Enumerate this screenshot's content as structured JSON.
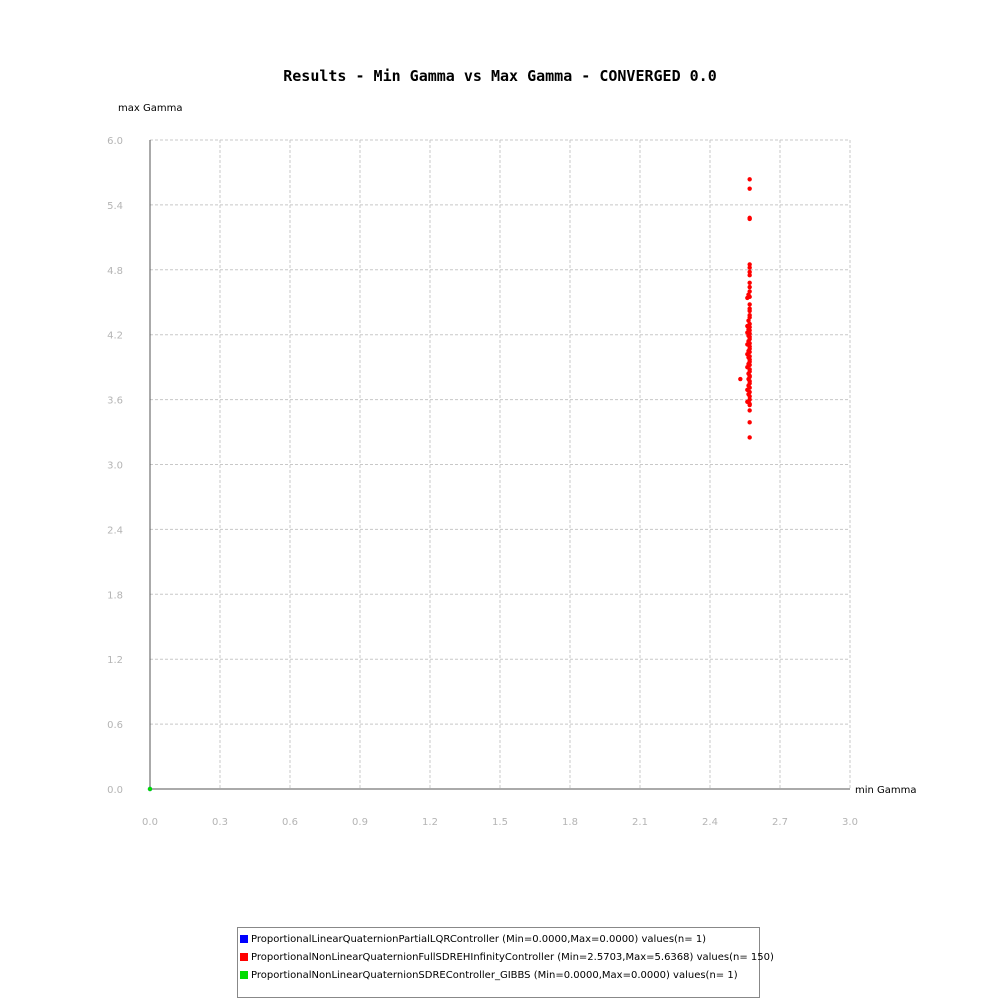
{
  "chart_data": {
    "type": "scatter",
    "title": "Results - Min Gamma vs Max Gamma - CONVERGED 0.0",
    "xlabel": "min Gamma",
    "ylabel": "max Gamma",
    "xlim": [
      0,
      3.0
    ],
    "ylim": [
      0,
      6.0
    ],
    "xticks": [
      "0.0",
      "0.3",
      "0.6",
      "0.9",
      "1.2",
      "1.5",
      "1.8",
      "2.1",
      "2.4",
      "2.7",
      "3.0"
    ],
    "yticks": [
      "0.0",
      "0.6",
      "1.2",
      "1.8",
      "2.4",
      "3.0",
      "3.6",
      "4.2",
      "4.8",
      "5.4",
      "6.0"
    ],
    "grid": true,
    "legend_position": "bottom",
    "series": [
      {
        "name": "ProportionalLinearQuaternionPartialLQRController (Min=0.0000,Max=0.0000) values(n= 1)",
        "color": "#0000ff",
        "points": [
          [
            0.0,
            0.0
          ]
        ]
      },
      {
        "name": "ProportionalNonLinearQuaternionFullSDREHInfinityController (Min=2.5703,Max=5.6368) values(n= 150)",
        "color": "#ff0000",
        "points": [
          [
            2.57,
            5.637
          ],
          [
            2.57,
            5.55
          ],
          [
            2.57,
            5.28
          ],
          [
            2.57,
            5.27
          ],
          [
            2.57,
            4.85
          ],
          [
            2.57,
            4.82
          ],
          [
            2.57,
            4.78
          ],
          [
            2.57,
            4.75
          ],
          [
            2.57,
            4.68
          ],
          [
            2.57,
            4.64
          ],
          [
            2.57,
            4.6
          ],
          [
            2.565,
            4.57
          ],
          [
            2.57,
            4.55
          ],
          [
            2.56,
            4.54
          ],
          [
            2.57,
            4.48
          ],
          [
            2.57,
            4.44
          ],
          [
            2.57,
            4.42
          ],
          [
            2.57,
            4.38
          ],
          [
            2.57,
            4.36
          ],
          [
            2.565,
            4.33
          ],
          [
            2.57,
            4.3
          ],
          [
            2.56,
            4.28
          ],
          [
            2.57,
            4.27
          ],
          [
            2.565,
            4.25
          ],
          [
            2.57,
            4.24
          ],
          [
            2.56,
            4.22
          ],
          [
            2.57,
            4.21
          ],
          [
            2.565,
            4.19
          ],
          [
            2.57,
            4.18
          ],
          [
            2.57,
            4.16
          ],
          [
            2.565,
            4.14
          ],
          [
            2.57,
            4.12
          ],
          [
            2.56,
            4.11
          ],
          [
            2.57,
            4.09
          ],
          [
            2.57,
            4.07
          ],
          [
            2.565,
            4.05
          ],
          [
            2.57,
            4.04
          ],
          [
            2.56,
            4.02
          ],
          [
            2.57,
            4.0
          ],
          [
            2.565,
            3.99
          ],
          [
            2.57,
            3.97
          ],
          [
            2.57,
            3.95
          ],
          [
            2.565,
            3.93
          ],
          [
            2.57,
            3.92
          ],
          [
            2.56,
            3.9
          ],
          [
            2.57,
            3.88
          ],
          [
            2.57,
            3.86
          ],
          [
            2.565,
            3.84
          ],
          [
            2.57,
            3.82
          ],
          [
            2.57,
            3.81
          ],
          [
            2.565,
            3.79
          ],
          [
            2.57,
            3.77
          ],
          [
            2.53,
            3.79
          ],
          [
            2.57,
            3.75
          ],
          [
            2.565,
            3.73
          ],
          [
            2.57,
            3.71
          ],
          [
            2.56,
            3.69
          ],
          [
            2.57,
            3.67
          ],
          [
            2.565,
            3.65
          ],
          [
            2.57,
            3.63
          ],
          [
            2.57,
            3.6
          ],
          [
            2.565,
            3.58
          ],
          [
            2.56,
            3.58
          ],
          [
            2.57,
            3.56
          ],
          [
            2.57,
            3.55
          ],
          [
            2.57,
            3.5
          ],
          [
            2.57,
            3.39
          ],
          [
            2.57,
            3.25
          ]
        ]
      },
      {
        "name": "ProportionalNonLinearQuaternionSDREController_GIBBS (Min=0.0000,Max=0.0000) values(n= 1)",
        "color": "#00dd00",
        "points": [
          [
            0.0,
            0.0
          ]
        ]
      }
    ]
  }
}
